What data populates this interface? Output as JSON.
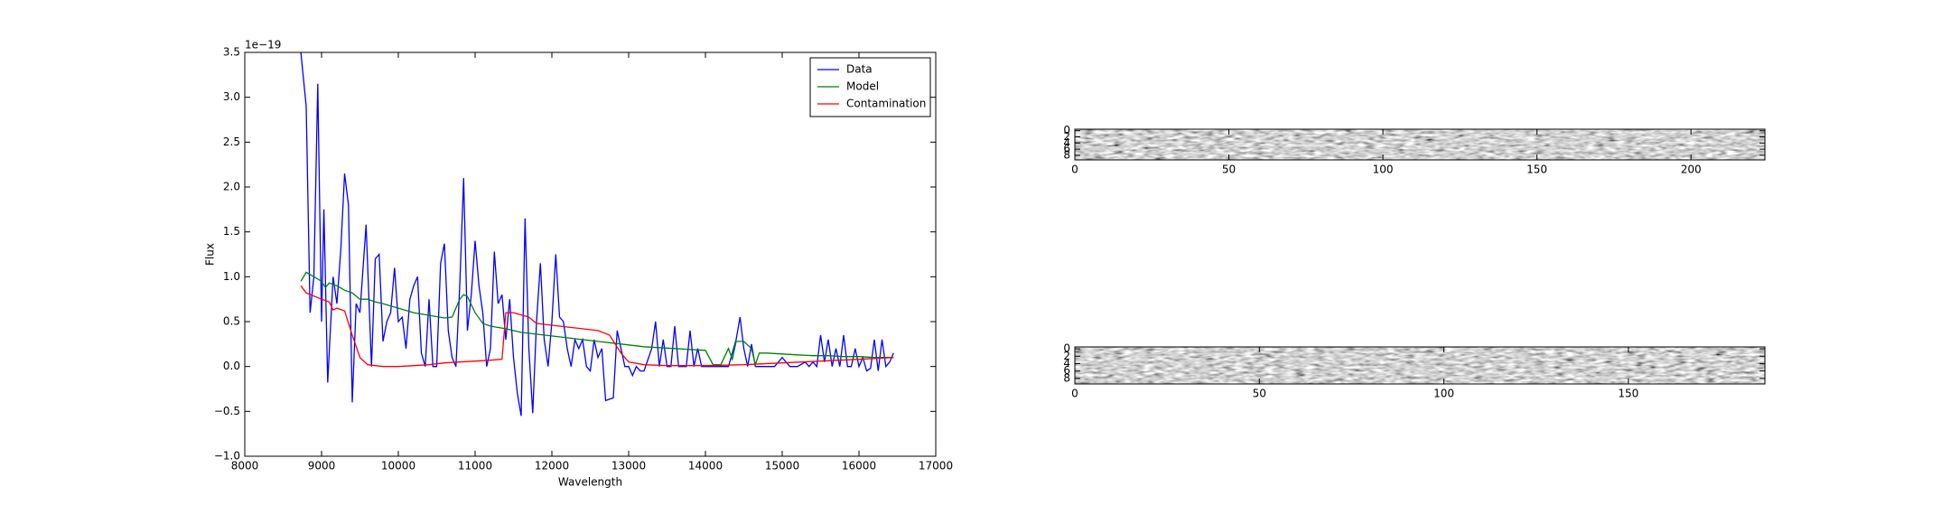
{
  "chart_data": [
    {
      "type": "line",
      "x_label": "Wavelength",
      "y_label": "Flux",
      "offset_label": "1e−19",
      "xlim": [
        8000,
        17000
      ],
      "xticks": [
        8000,
        9000,
        10000,
        11000,
        12000,
        13000,
        14000,
        15000,
        16000,
        17000
      ],
      "ylim": [
        -1,
        3.5
      ],
      "yticks": [
        {
          "value": -1,
          "label": "−1.0"
        },
        {
          "value": -0.5,
          "label": "−0.5"
        },
        {
          "value": 0,
          "label": "0.0"
        },
        0.5,
        {
          "value": 1,
          "label": "1.0"
        },
        1.5,
        {
          "value": 2,
          "label": "2.0"
        },
        2.5,
        {
          "value": 3,
          "label": "3.0"
        },
        3.5
      ],
      "legend": "upper right",
      "series": [
        {
          "name": "Data",
          "color": "#0000ff",
          "x": [
            8730,
            8800,
            8850,
            8900,
            8950,
            9000,
            9030,
            9080,
            9150,
            9200,
            9250,
            9300,
            9350,
            9400,
            9450,
            9500,
            9580,
            9650,
            9700,
            9750,
            9800,
            9850,
            9900,
            9950,
            10000,
            10050,
            10100,
            10150,
            10200,
            10250,
            10300,
            10350,
            10400,
            10450,
            10500,
            10550,
            10600,
            10650,
            10700,
            10750,
            10800,
            10850,
            10900,
            10950,
            11000,
            11050,
            11100,
            11150,
            11200,
            11250,
            11300,
            11350,
            11400,
            11450,
            11500,
            11550,
            11600,
            11650,
            11700,
            11750,
            11800,
            11850,
            11900,
            11950,
            12000,
            12050,
            12100,
            12150,
            12200,
            12250,
            12300,
            12350,
            12400,
            12450,
            12500,
            12550,
            12600,
            12650,
            12700,
            12800,
            12850,
            12900,
            12950,
            13000,
            13050,
            13100,
            13150,
            13200,
            13300,
            13350,
            13400,
            13450,
            13500,
            13550,
            13600,
            13650,
            13700,
            13750,
            13800,
            13850,
            13900,
            13950,
            14000,
            14050,
            14100,
            14200,
            14300,
            14400,
            14450,
            14500,
            14550,
            14600,
            14650,
            14700,
            14800,
            14900,
            15000,
            15100,
            15200,
            15300,
            15350,
            15400,
            15450,
            15500,
            15550,
            15600,
            15650,
            15700,
            15750,
            15800,
            15850,
            15900,
            15950,
            16000,
            16050,
            16100,
            16150,
            16200,
            16250,
            16300,
            16350,
            16400,
            16450
          ],
          "values": [
            3.5,
            2.9,
            0.6,
            1.0,
            3.15,
            0.5,
            1.75,
            -0.18,
            1.0,
            0.7,
            1.3,
            2.15,
            1.8,
            -0.4,
            0.7,
            0.6,
            1.58,
            0.0,
            1.2,
            1.25,
            0.28,
            0.5,
            0.6,
            1.1,
            0.5,
            0.55,
            0.2,
            0.75,
            0.9,
            1.0,
            0.15,
            0.0,
            0.75,
            0.0,
            0.0,
            1.15,
            1.37,
            0.4,
            0.1,
            0.0,
            0.9,
            2.1,
            0.4,
            0.8,
            1.4,
            0.9,
            0.6,
            0.0,
            0.2,
            1.28,
            0.7,
            0.8,
            0.3,
            0.75,
            0.1,
            -0.3,
            -0.55,
            1.65,
            0.2,
            -0.52,
            0.5,
            1.15,
            0.3,
            0.0,
            0.5,
            1.25,
            0.55,
            0.5,
            0.2,
            0.0,
            0.3,
            0.2,
            0.3,
            0.0,
            -0.05,
            0.3,
            0.1,
            0.2,
            -0.38,
            -0.35,
            0.4,
            0.2,
            0.0,
            0.0,
            -0.1,
            0.0,
            -0.05,
            -0.05,
            0.2,
            0.5,
            0.0,
            0.3,
            0.0,
            0.0,
            0.45,
            0.0,
            0.0,
            0.0,
            0.4,
            0.0,
            0.2,
            0.0,
            0.0,
            0.0,
            0.0,
            0.0,
            0.0,
            0.3,
            0.55,
            0.2,
            0.0,
            0.25,
            0.0,
            0.0,
            0.0,
            0.0,
            0.1,
            0.0,
            0.0,
            0.05,
            0.0,
            0.05,
            0.0,
            0.35,
            0.05,
            0.3,
            0.0,
            0.2,
            0.0,
            0.35,
            0.0,
            0.0,
            0.2,
            0.0,
            0.1,
            -0.05,
            -0.02,
            0.3,
            -0.05,
            0.3,
            0.0,
            0.05,
            0.15
          ]
        },
        {
          "name": "Model",
          "color": "#008000",
          "x": [
            8730,
            8800,
            8900,
            9000,
            9050,
            9100,
            9200,
            9300,
            9400,
            9500,
            9600,
            9700,
            9800,
            10000,
            10200,
            10400,
            10600,
            10700,
            10800,
            10850,
            10900,
            11000,
            11100,
            11200,
            11400,
            11600,
            11800,
            12000,
            12200,
            12400,
            12600,
            12800,
            13000,
            13200,
            13400,
            13600,
            13800,
            14000,
            14100,
            14200,
            14300,
            14350,
            14400,
            14500,
            14600,
            14650,
            14700,
            14800,
            15000,
            15200,
            15400,
            15600,
            15800,
            16000,
            16200,
            16450
          ],
          "values": [
            0.95,
            1.05,
            1.0,
            0.95,
            0.88,
            0.93,
            0.9,
            0.85,
            0.82,
            0.75,
            0.75,
            0.72,
            0.7,
            0.65,
            0.6,
            0.57,
            0.54,
            0.55,
            0.75,
            0.8,
            0.78,
            0.6,
            0.48,
            0.45,
            0.42,
            0.38,
            0.36,
            0.34,
            0.32,
            0.3,
            0.28,
            0.26,
            0.24,
            0.22,
            0.21,
            0.2,
            0.19,
            0.18,
            0.02,
            0.02,
            0.2,
            0.08,
            0.28,
            0.28,
            0.2,
            0.02,
            0.15,
            0.15,
            0.14,
            0.13,
            0.12,
            0.12,
            0.11,
            0.11,
            0.1,
            0.1
          ]
        },
        {
          "name": "Contamination",
          "color": "#ff0000",
          "x": [
            8730,
            8800,
            9000,
            9100,
            9150,
            9200,
            9300,
            9400,
            9500,
            9600,
            9800,
            10000,
            10200,
            10400,
            10600,
            10800,
            11000,
            11200,
            11350,
            11400,
            11500,
            11700,
            11800,
            12000,
            12200,
            12400,
            12600,
            12750,
            12900,
            13000,
            13200,
            13500,
            14000,
            14500,
            15000,
            15500,
            16000,
            16450
          ],
          "values": [
            0.9,
            0.82,
            0.75,
            0.72,
            0.63,
            0.65,
            0.62,
            0.35,
            0.1,
            0.02,
            0.0,
            0.0,
            0.01,
            0.02,
            0.04,
            0.05,
            0.06,
            0.07,
            0.08,
            0.6,
            0.6,
            0.55,
            0.48,
            0.46,
            0.44,
            0.42,
            0.4,
            0.35,
            0.15,
            0.05,
            0.02,
            0.01,
            0.01,
            0.02,
            0.04,
            0.06,
            0.08,
            0.1
          ]
        }
      ]
    },
    {
      "type": "image",
      "xlim": [
        0,
        224
      ],
      "xticks": [
        0,
        50,
        100,
        150,
        200
      ],
      "ylim": [
        9.5,
        -0.5
      ],
      "yticks": [
        0,
        2,
        4,
        6,
        8
      ]
    },
    {
      "type": "image",
      "xlim": [
        0,
        187
      ],
      "xticks": [
        0,
        50,
        100,
        150
      ],
      "ylim": [
        9.5,
        -0.5
      ],
      "yticks": [
        0,
        2,
        4,
        6,
        8
      ]
    }
  ]
}
